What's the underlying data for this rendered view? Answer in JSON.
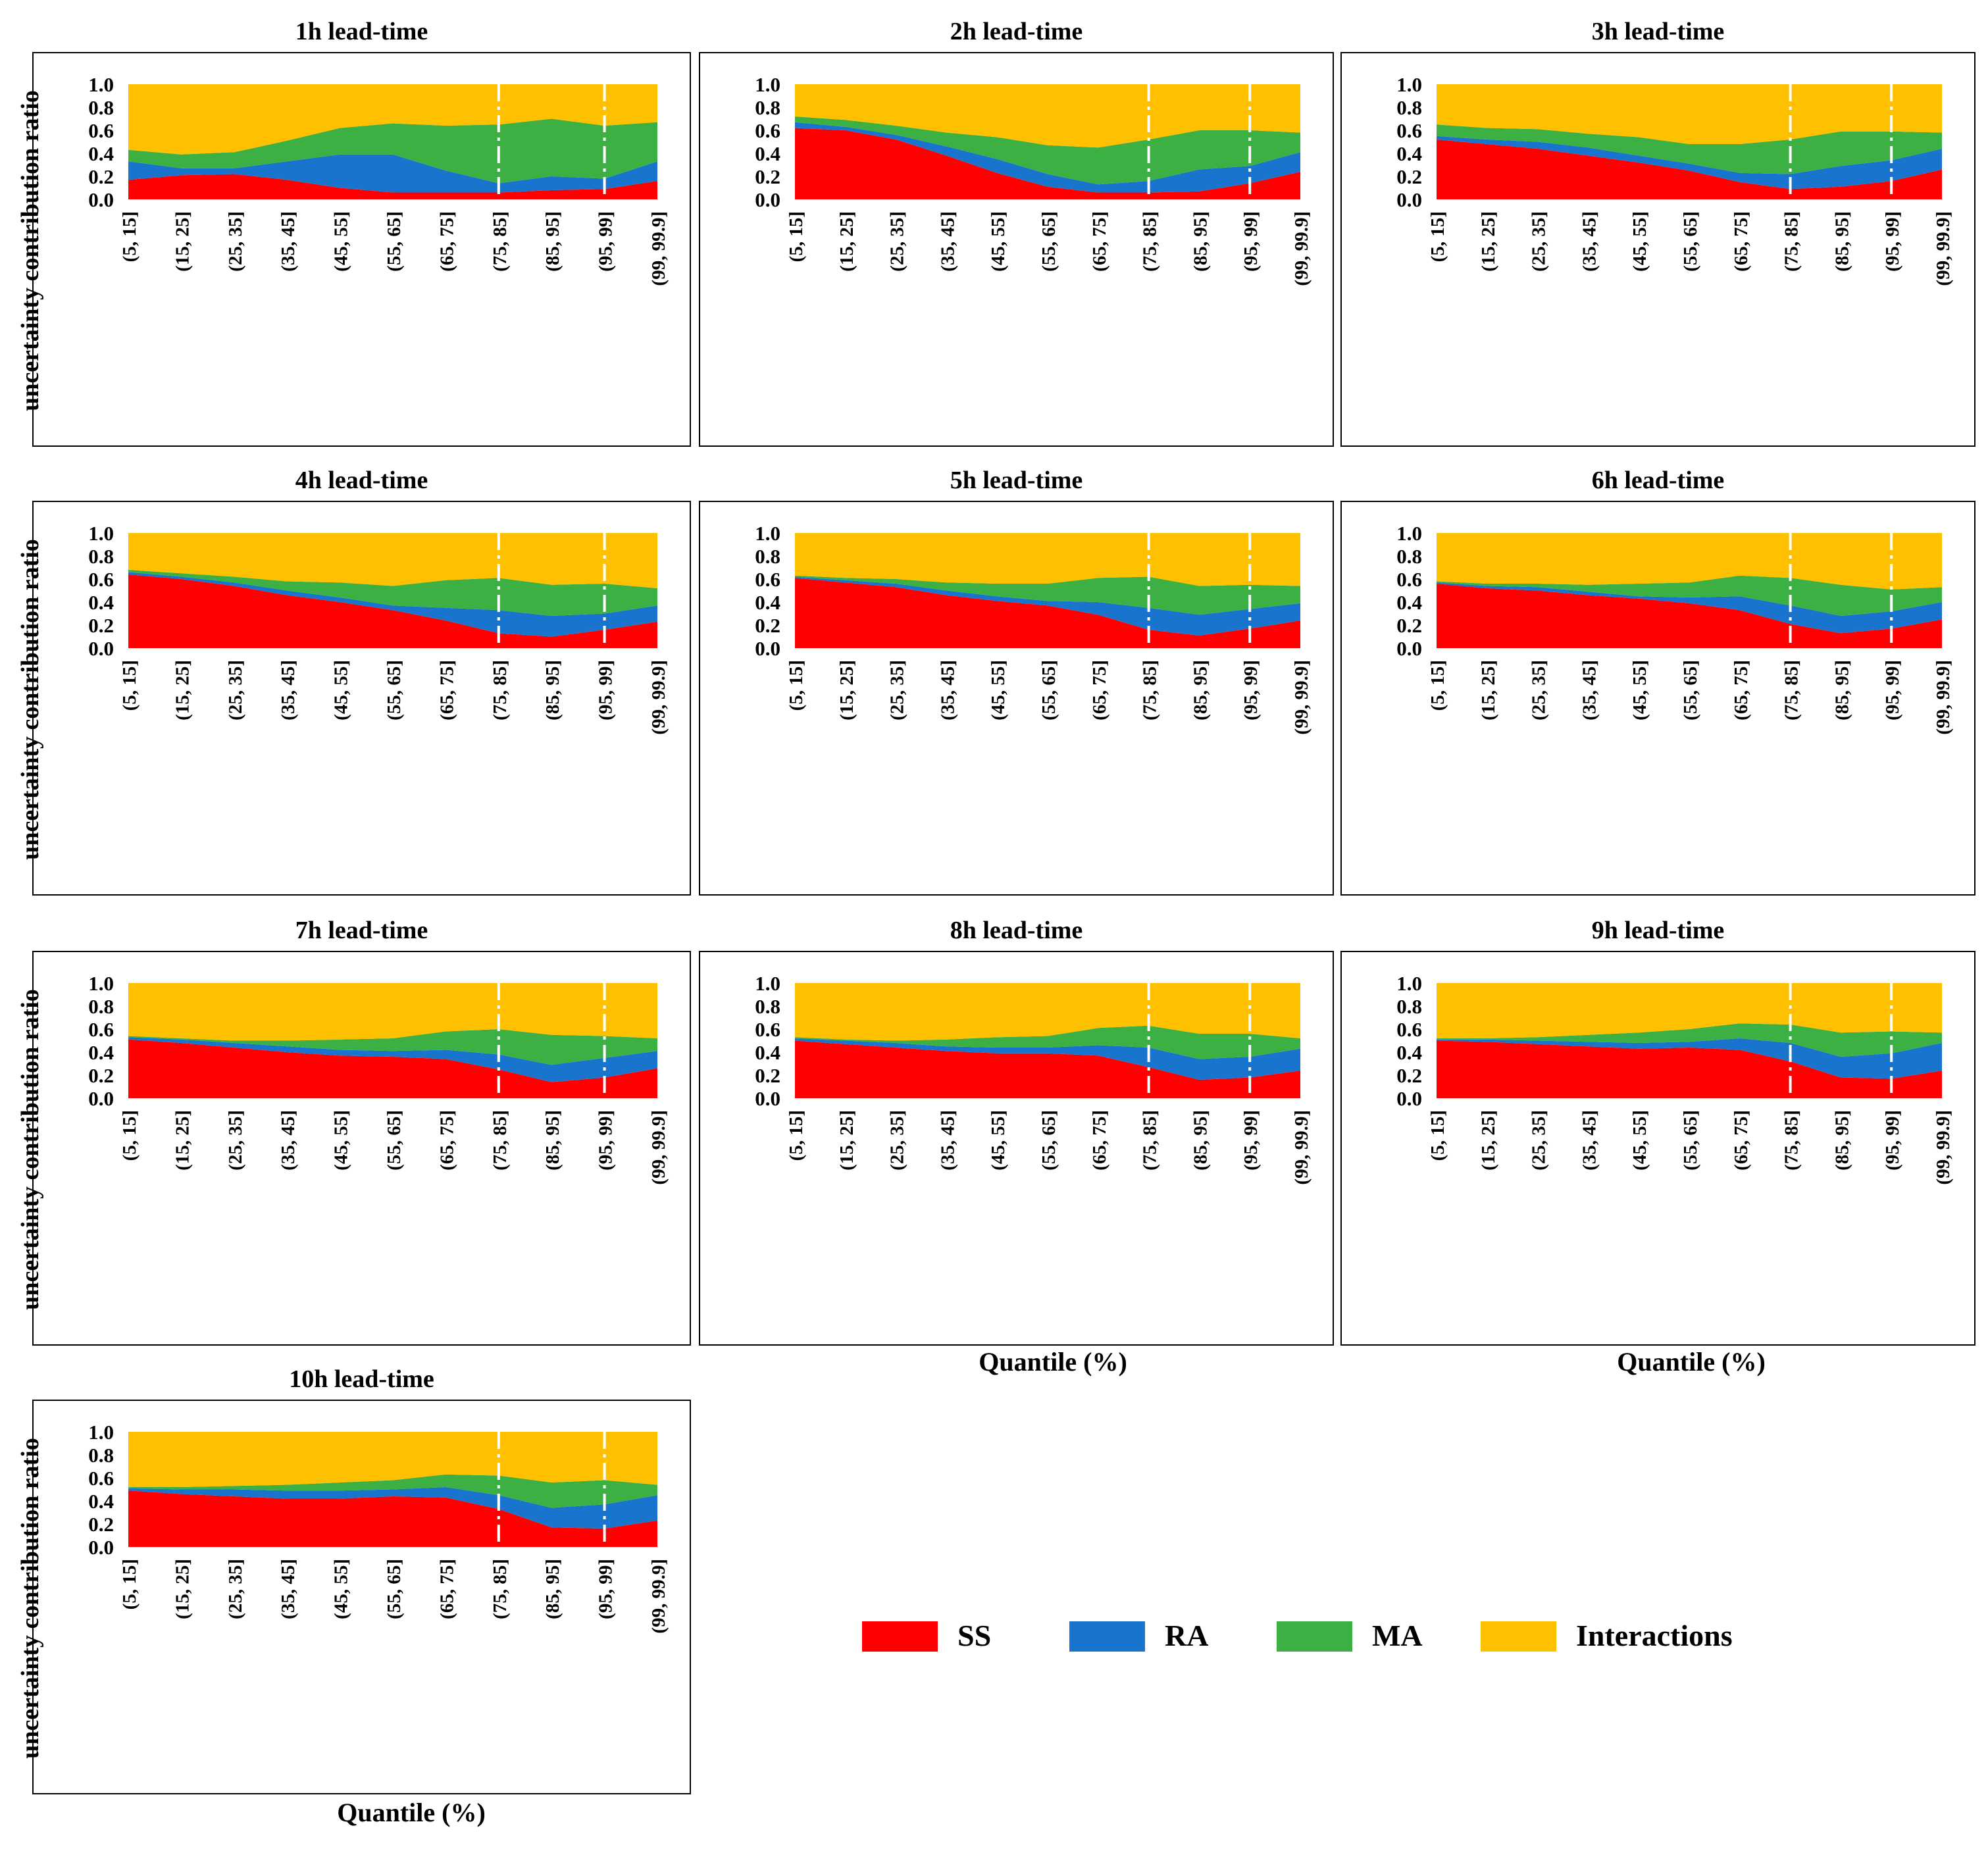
{
  "figure": {
    "quantile_label": "Quantile (%)",
    "ylabel": "uncertainty contribution ratio"
  },
  "legend": {
    "items": [
      {
        "label": "SS",
        "color": "#FF0000"
      },
      {
        "label": "RA",
        "color": "#1874CD"
      },
      {
        "label": "MA",
        "color": "#3CB043"
      },
      {
        "label": "Interactions",
        "color": "#FFC000"
      }
    ]
  },
  "chart_data": {
    "type": "area",
    "stacked": true,
    "ylim": [
      0,
      1
    ],
    "yticks": [
      "0.0",
      "0.2",
      "0.4",
      "0.6",
      "0.8",
      "1.0"
    ],
    "categories": [
      "(5, 15]",
      "(15, 25]",
      "(25, 35]",
      "(35, 45]",
      "(45, 55]",
      "(55, 65]",
      "(65, 75]",
      "(75, 85]",
      "(85, 95]",
      "(95, 99]",
      "(99, 99.9]"
    ],
    "reference_lines_at": [
      "(75, 85]",
      "(95, 99]"
    ],
    "series_names": [
      "SS",
      "RA",
      "MA",
      "Interactions"
    ],
    "panels": [
      {
        "title": "1h lead-time",
        "SS": [
          0.17,
          0.21,
          0.22,
          0.17,
          0.1,
          0.06,
          0.06,
          0.06,
          0.08,
          0.09,
          0.16
        ],
        "RA": [
          0.16,
          0.06,
          0.05,
          0.16,
          0.29,
          0.33,
          0.19,
          0.08,
          0.12,
          0.09,
          0.17
        ],
        "MA": [
          0.1,
          0.12,
          0.14,
          0.18,
          0.23,
          0.27,
          0.39,
          0.51,
          0.5,
          0.46,
          0.34
        ],
        "Interactions": [
          0.57,
          0.61,
          0.59,
          0.49,
          0.38,
          0.34,
          0.36,
          0.35,
          0.3,
          0.36,
          0.33
        ]
      },
      {
        "title": "2h lead-time",
        "SS": [
          0.62,
          0.6,
          0.52,
          0.38,
          0.23,
          0.11,
          0.06,
          0.06,
          0.07,
          0.14,
          0.24
        ],
        "RA": [
          0.05,
          0.03,
          0.04,
          0.08,
          0.12,
          0.11,
          0.07,
          0.1,
          0.19,
          0.15,
          0.17
        ],
        "MA": [
          0.05,
          0.06,
          0.08,
          0.12,
          0.19,
          0.25,
          0.32,
          0.36,
          0.34,
          0.31,
          0.17
        ],
        "Interactions": [
          0.28,
          0.31,
          0.36,
          0.42,
          0.46,
          0.53,
          0.55,
          0.48,
          0.4,
          0.4,
          0.42
        ]
      },
      {
        "title": "3h lead-time",
        "SS": [
          0.52,
          0.48,
          0.44,
          0.38,
          0.32,
          0.25,
          0.15,
          0.09,
          0.11,
          0.16,
          0.26
        ],
        "RA": [
          0.03,
          0.04,
          0.06,
          0.07,
          0.06,
          0.06,
          0.08,
          0.13,
          0.18,
          0.18,
          0.18
        ],
        "MA": [
          0.1,
          0.1,
          0.11,
          0.12,
          0.16,
          0.17,
          0.25,
          0.3,
          0.3,
          0.25,
          0.14
        ],
        "Interactions": [
          0.35,
          0.38,
          0.39,
          0.43,
          0.46,
          0.52,
          0.52,
          0.48,
          0.41,
          0.41,
          0.42
        ]
      },
      {
        "title": "4h lead-time",
        "SS": [
          0.64,
          0.6,
          0.54,
          0.46,
          0.4,
          0.33,
          0.24,
          0.13,
          0.1,
          0.16,
          0.23
        ],
        "RA": [
          0.02,
          0.02,
          0.03,
          0.04,
          0.04,
          0.04,
          0.11,
          0.2,
          0.18,
          0.14,
          0.14
        ],
        "MA": [
          0.02,
          0.03,
          0.05,
          0.08,
          0.13,
          0.17,
          0.24,
          0.28,
          0.27,
          0.26,
          0.15
        ],
        "Interactions": [
          0.32,
          0.35,
          0.38,
          0.42,
          0.43,
          0.46,
          0.41,
          0.39,
          0.45,
          0.44,
          0.48
        ]
      },
      {
        "title": "5h lead-time",
        "SS": [
          0.61,
          0.57,
          0.53,
          0.46,
          0.41,
          0.37,
          0.29,
          0.16,
          0.11,
          0.17,
          0.24
        ],
        "RA": [
          0.01,
          0.02,
          0.03,
          0.04,
          0.04,
          0.04,
          0.11,
          0.19,
          0.18,
          0.17,
          0.15
        ],
        "MA": [
          0.01,
          0.02,
          0.04,
          0.07,
          0.11,
          0.15,
          0.21,
          0.27,
          0.25,
          0.21,
          0.15
        ],
        "Interactions": [
          0.37,
          0.39,
          0.4,
          0.43,
          0.44,
          0.44,
          0.39,
          0.38,
          0.46,
          0.45,
          0.46
        ]
      },
      {
        "title": "6h lead-time",
        "SS": [
          0.56,
          0.52,
          0.5,
          0.46,
          0.43,
          0.39,
          0.33,
          0.21,
          0.13,
          0.17,
          0.25
        ],
        "RA": [
          0.01,
          0.02,
          0.03,
          0.03,
          0.02,
          0.05,
          0.12,
          0.16,
          0.15,
          0.15,
          0.15
        ],
        "MA": [
          0.01,
          0.02,
          0.03,
          0.06,
          0.11,
          0.13,
          0.18,
          0.24,
          0.27,
          0.19,
          0.13
        ],
        "Interactions": [
          0.42,
          0.44,
          0.44,
          0.45,
          0.44,
          0.43,
          0.37,
          0.39,
          0.45,
          0.49,
          0.47
        ]
      },
      {
        "title": "7h lead-time",
        "SS": [
          0.51,
          0.48,
          0.44,
          0.4,
          0.37,
          0.36,
          0.34,
          0.25,
          0.14,
          0.18,
          0.26
        ],
        "RA": [
          0.02,
          0.03,
          0.04,
          0.05,
          0.05,
          0.05,
          0.08,
          0.13,
          0.15,
          0.17,
          0.15
        ],
        "MA": [
          0.01,
          0.01,
          0.02,
          0.05,
          0.09,
          0.11,
          0.16,
          0.22,
          0.26,
          0.19,
          0.11
        ],
        "Interactions": [
          0.46,
          0.48,
          0.5,
          0.5,
          0.49,
          0.48,
          0.42,
          0.4,
          0.45,
          0.46,
          0.48
        ]
      },
      {
        "title": "8h lead-time",
        "SS": [
          0.5,
          0.47,
          0.44,
          0.41,
          0.39,
          0.39,
          0.37,
          0.27,
          0.16,
          0.18,
          0.24
        ],
        "RA": [
          0.02,
          0.03,
          0.04,
          0.04,
          0.05,
          0.05,
          0.09,
          0.17,
          0.18,
          0.18,
          0.19
        ],
        "MA": [
          0.01,
          0.01,
          0.02,
          0.06,
          0.09,
          0.1,
          0.15,
          0.19,
          0.22,
          0.2,
          0.09
        ],
        "Interactions": [
          0.47,
          0.49,
          0.5,
          0.49,
          0.47,
          0.46,
          0.39,
          0.37,
          0.44,
          0.44,
          0.48
        ]
      },
      {
        "title": "9h lead-time",
        "SS": [
          0.5,
          0.49,
          0.47,
          0.45,
          0.43,
          0.44,
          0.42,
          0.32,
          0.18,
          0.17,
          0.24
        ],
        "RA": [
          0.01,
          0.02,
          0.03,
          0.04,
          0.05,
          0.05,
          0.1,
          0.16,
          0.18,
          0.22,
          0.24
        ],
        "MA": [
          0.01,
          0.01,
          0.03,
          0.06,
          0.09,
          0.11,
          0.13,
          0.16,
          0.21,
          0.19,
          0.09
        ],
        "Interactions": [
          0.48,
          0.48,
          0.47,
          0.45,
          0.43,
          0.4,
          0.35,
          0.36,
          0.43,
          0.42,
          0.43
        ]
      },
      {
        "title": "10h lead-time",
        "SS": [
          0.49,
          0.46,
          0.44,
          0.42,
          0.42,
          0.44,
          0.43,
          0.33,
          0.17,
          0.16,
          0.23
        ],
        "RA": [
          0.02,
          0.04,
          0.06,
          0.07,
          0.07,
          0.06,
          0.09,
          0.12,
          0.17,
          0.21,
          0.22
        ],
        "MA": [
          0.01,
          0.02,
          0.03,
          0.05,
          0.07,
          0.08,
          0.11,
          0.17,
          0.22,
          0.21,
          0.09
        ],
        "Interactions": [
          0.48,
          0.48,
          0.47,
          0.46,
          0.44,
          0.42,
          0.37,
          0.38,
          0.44,
          0.42,
          0.46
        ]
      }
    ]
  }
}
